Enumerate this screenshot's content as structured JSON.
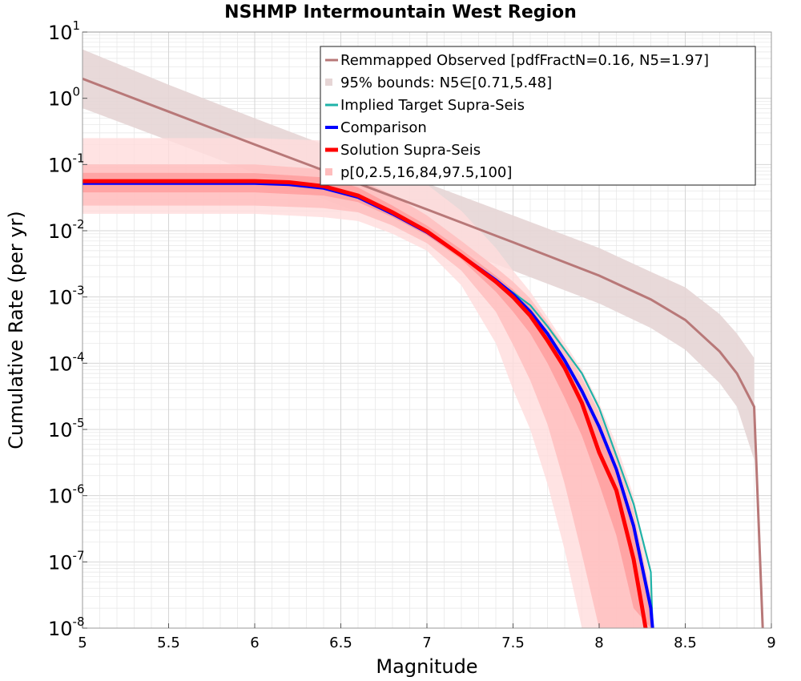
{
  "chart_data": {
    "type": "line",
    "title": "NSHMP Intermountain West Region",
    "xlabel": "Magnitude",
    "ylabel": "Cumulative Rate (per yr)",
    "xlim": [
      5,
      9
    ],
    "ylim": [
      1e-08,
      10
    ],
    "yscale": "log",
    "grid": true,
    "legend_position": "top-right",
    "x_ticks": [
      "5",
      "5.5",
      "6",
      "6.5",
      "7",
      "7.5",
      "8",
      "8.5",
      "9"
    ],
    "y_ticks": [
      {
        "base": "10",
        "exp": "1"
      },
      {
        "base": "10",
        "exp": "0"
      },
      {
        "base": "10",
        "exp": "-1"
      },
      {
        "base": "10",
        "exp": "-2"
      },
      {
        "base": "10",
        "exp": "-3"
      },
      {
        "base": "10",
        "exp": "-4"
      },
      {
        "base": "10",
        "exp": "-5"
      },
      {
        "base": "10",
        "exp": "-6"
      },
      {
        "base": "10",
        "exp": "-7"
      },
      {
        "base": "10",
        "exp": "-8"
      }
    ],
    "legend": [
      "Remmapped Observed [pdfFractN=0.16, N5=1.97]",
      "95% bounds: N5∈[0.71,5.48]",
      "Implied Target Supra-Seis",
      "Comparison",
      "Solution Supra-Seis",
      "p[0,2.5,16,84,97.5,100]"
    ],
    "colors": {
      "observed": "#b87878",
      "observed_band": "#e6d5d5",
      "target": "#1fb3a8",
      "comparison": "#0000ff",
      "solution": "#ff0000",
      "pband_outer": "#ffdcdc",
      "pband_mid": "#ffbdbd",
      "pband_inner": "#ff9b9b",
      "grid": "#e6e6e6"
    },
    "series": [
      {
        "name": "Remmapped Observed [pdfFractN=0.16, N5=1.97]",
        "x": [
          5.0,
          5.5,
          6.0,
          6.5,
          7.0,
          7.5,
          8.0,
          8.3,
          8.5,
          8.7,
          8.8,
          8.9,
          8.95
        ],
        "y": [
          1.97,
          0.63,
          0.2,
          0.065,
          0.021,
          0.0067,
          0.0021,
          0.00092,
          0.00045,
          0.00015,
          7e-05,
          2.2e-05,
          1e-08
        ]
      },
      {
        "name": "95% bounds: N5∈[0.71,5.48]",
        "x": [
          5.0,
          5.5,
          6.0,
          6.5,
          7.0,
          7.5,
          8.0,
          8.3,
          8.5,
          8.7,
          8.8,
          8.9
        ],
        "upper": [
          5.48,
          1.6,
          0.5,
          0.16,
          0.052,
          0.017,
          0.0055,
          0.0024,
          0.0014,
          0.00055,
          0.00028,
          0.00012
        ],
        "lower": [
          0.71,
          0.23,
          0.075,
          0.024,
          0.0078,
          0.0025,
          0.0008,
          0.00034,
          0.00016,
          5e-05,
          2.2e-05,
          3.5e-06
        ]
      },
      {
        "name": "Implied Target Supra-Seis",
        "x": [
          5.0,
          5.5,
          6.0,
          6.2,
          6.4,
          6.6,
          6.8,
          7.0,
          7.2,
          7.4,
          7.6,
          7.7,
          7.8,
          7.9,
          8.0,
          8.1,
          8.2,
          8.3,
          8.31
        ],
        "y": [
          0.056,
          0.056,
          0.055,
          0.053,
          0.046,
          0.034,
          0.019,
          0.0098,
          0.0043,
          0.0018,
          0.00075,
          0.00036,
          0.00016,
          7e-05,
          2.1e-05,
          4e-06,
          7.5e-07,
          7e-08,
          1e-08
        ]
      },
      {
        "name": "Comparison",
        "x": [
          5.0,
          5.5,
          6.0,
          6.2,
          6.4,
          6.6,
          6.8,
          7.0,
          7.2,
          7.4,
          7.5,
          7.6,
          7.7,
          7.8,
          7.9,
          8.0,
          8.1,
          8.2,
          8.3,
          8.31
        ],
        "y": [
          0.052,
          0.052,
          0.052,
          0.05,
          0.044,
          0.032,
          0.018,
          0.0095,
          0.0042,
          0.0018,
          0.0011,
          0.0006,
          0.00028,
          0.00011,
          3.8e-05,
          1.1e-05,
          2.5e-06,
          3.5e-07,
          2e-08,
          1e-08
        ]
      },
      {
        "name": "Solution Supra-Seis",
        "x": [
          5.0,
          5.5,
          6.0,
          6.2,
          6.4,
          6.6,
          6.8,
          7.0,
          7.2,
          7.4,
          7.5,
          7.6,
          7.7,
          7.8,
          7.9,
          8.0,
          8.1,
          8.2,
          8.25,
          8.27
        ],
        "y": [
          0.056,
          0.056,
          0.056,
          0.054,
          0.047,
          0.034,
          0.019,
          0.0098,
          0.0042,
          0.0017,
          0.001,
          0.00052,
          0.00022,
          8.5e-05,
          2.5e-05,
          4.5e-06,
          1.2e-06,
          1.1e-07,
          2e-08,
          1e-08
        ]
      },
      {
        "name": "p[0,2.5,16,84,97.5,100]",
        "x": [
          5.0,
          5.5,
          6.0,
          6.4,
          6.6,
          6.8,
          7.0,
          7.2,
          7.4,
          7.5,
          7.6,
          7.7,
          7.8,
          7.9,
          8.0,
          8.1,
          8.2,
          8.3
        ],
        "p0": [
          0.018,
          0.018,
          0.018,
          0.016,
          0.014,
          0.009,
          0.005,
          0.0015,
          0.0002,
          4e-05,
          1e-05,
          1.5e-06,
          1.5e-07,
          1e-08,
          1e-08,
          1e-08,
          1e-08,
          1e-08
        ],
        "p2_5": [
          0.024,
          0.024,
          0.024,
          0.022,
          0.019,
          0.012,
          0.0065,
          0.0025,
          0.0006,
          0.00019,
          5.5e-05,
          1.2e-05,
          1.5e-06,
          1.3e-07,
          1e-08,
          1e-08,
          1e-08,
          1e-08
        ],
        "p16": [
          0.038,
          0.038,
          0.038,
          0.034,
          0.027,
          0.016,
          0.0085,
          0.0037,
          0.0012,
          0.0006,
          0.00028,
          0.0001,
          3e-05,
          8e-06,
          1.5e-06,
          2.5e-07,
          2e-08,
          1e-08
        ],
        "p84": [
          0.075,
          0.075,
          0.074,
          0.064,
          0.045,
          0.024,
          0.012,
          0.0052,
          0.0021,
          0.0013,
          0.0007,
          0.0003,
          0.00012,
          4e-05,
          1e-05,
          2.5e-06,
          3.5e-07,
          2e-08
        ],
        "p97_5": [
          0.1,
          0.1,
          0.1,
          0.085,
          0.06,
          0.035,
          0.017,
          0.007,
          0.0028,
          0.0017,
          0.00095,
          0.00042,
          0.00017,
          6e-05,
          1.8e-05,
          4e-06,
          6e-07,
          3e-08
        ],
        "p100": [
          0.25,
          0.25,
          0.25,
          0.23,
          0.18,
          0.11,
          0.05,
          0.02,
          0.0055,
          0.0025,
          0.0012,
          0.0005,
          0.0002,
          8e-05,
          2.5e-05,
          6e-06,
          1e-06,
          5e-08
        ]
      }
    ]
  }
}
